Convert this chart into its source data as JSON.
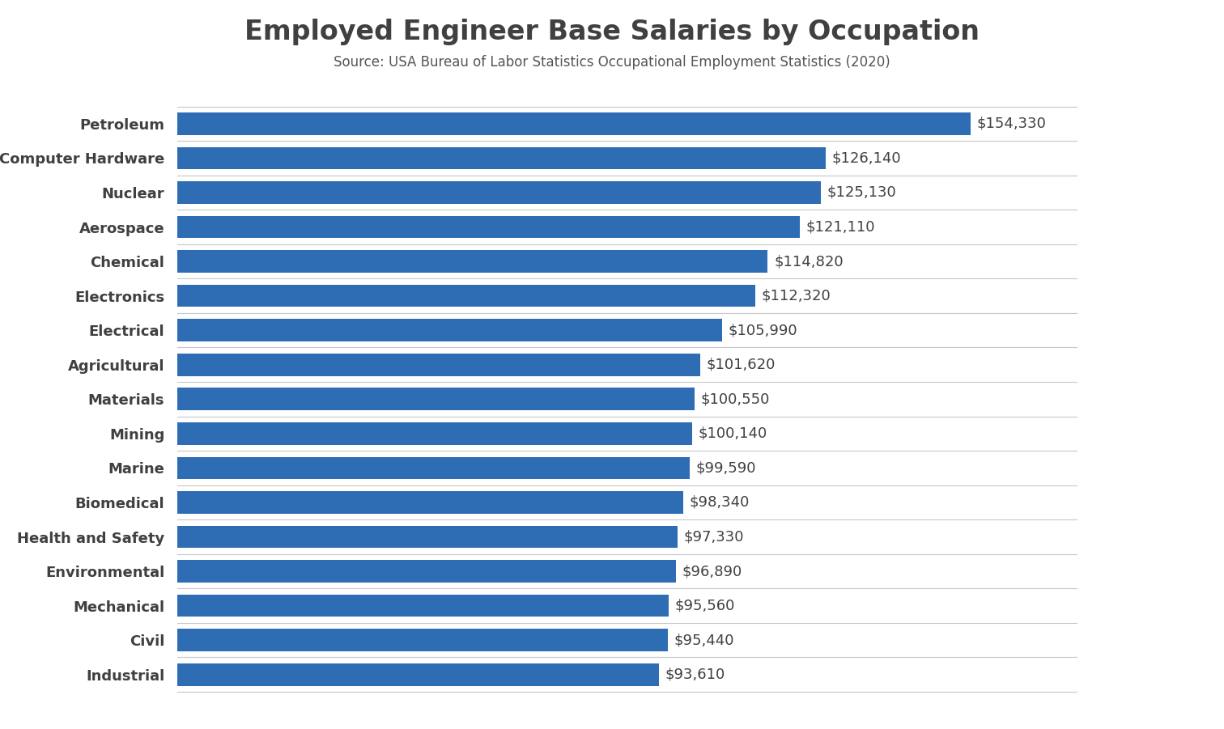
{
  "title": "Employed Engineer Base Salaries by Occupation",
  "subtitle": "Source: USA Bureau of Labor Statistics Occupational Employment Statistics (2020)",
  "categories": [
    "Industrial",
    "Civil",
    "Mechanical",
    "Environmental",
    "Health and Safety",
    "Biomedical",
    "Marine",
    "Mining",
    "Materials",
    "Agricultural",
    "Electrical",
    "Electronics",
    "Chemical",
    "Aerospace",
    "Nuclear",
    "Computer Hardware",
    "Petroleum"
  ],
  "values": [
    93610,
    95440,
    95560,
    96890,
    97330,
    98340,
    99590,
    100140,
    100550,
    101620,
    105990,
    112320,
    114820,
    121110,
    125130,
    126140,
    154330
  ],
  "bar_color": "#2E6DB4",
  "background_color": "#ffffff",
  "title_fontsize": 24,
  "subtitle_fontsize": 12,
  "label_fontsize": 13,
  "value_fontsize": 13,
  "xlim": [
    0,
    175000
  ],
  "title_color": "#404040",
  "subtitle_color": "#555555",
  "label_color": "#404040",
  "value_color": "#404040",
  "separator_color": "#c8c8c8",
  "bar_height": 0.65
}
